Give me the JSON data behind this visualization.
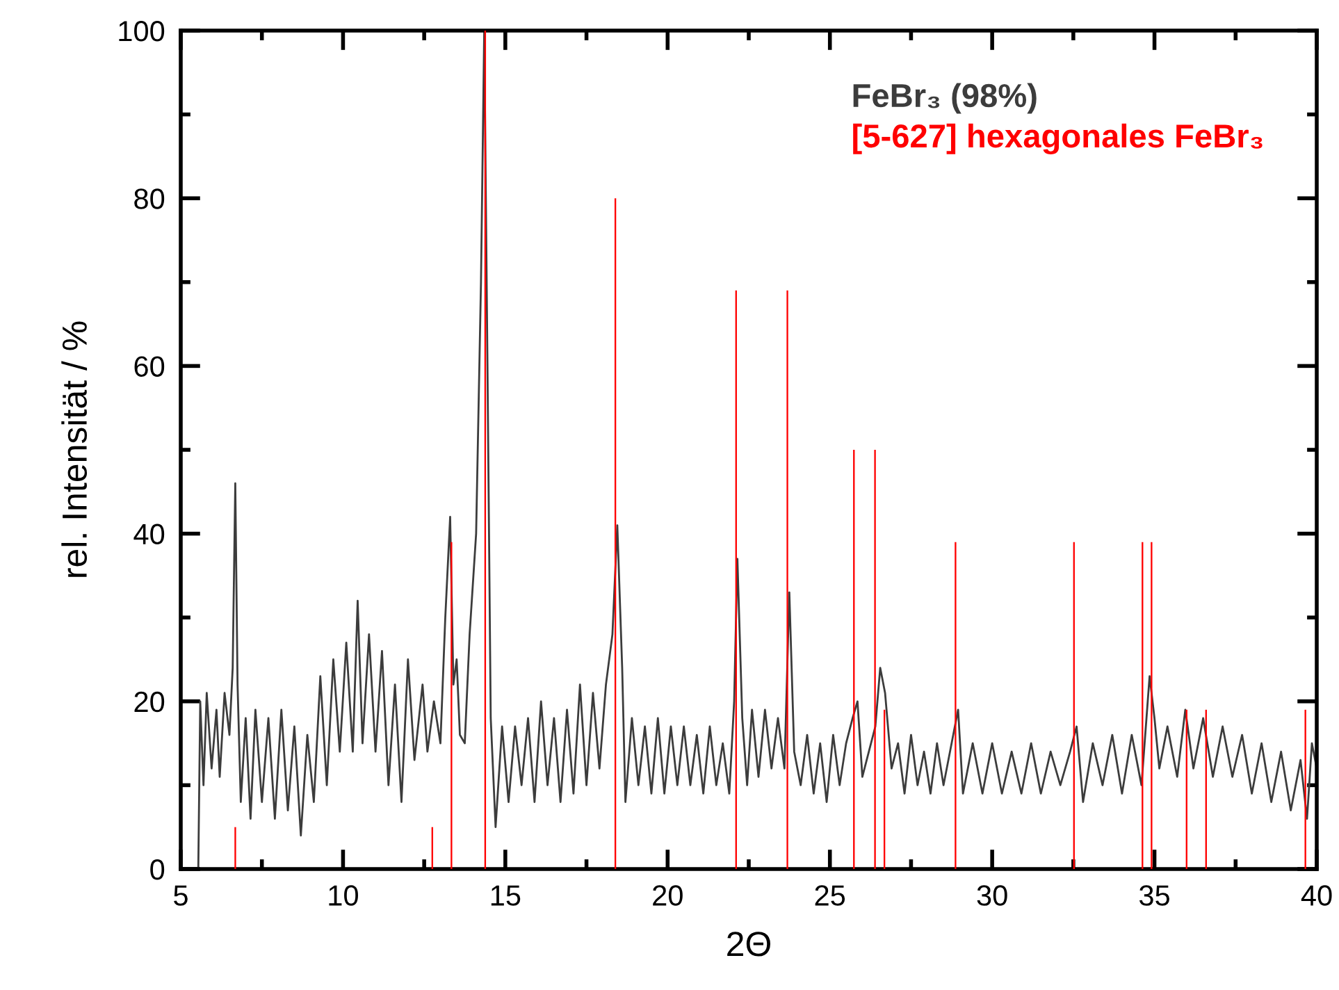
{
  "chart_data": {
    "type": "line",
    "xlabel": "2Θ",
    "ylabel": "rel. Intensität / %",
    "xlim": [
      5,
      40
    ],
    "ylim": [
      0,
      100
    ],
    "xticks": [
      5,
      {
        "value": 7.5,
        "label": null
      },
      10,
      {
        "value": 12.5,
        "label": null
      },
      15,
      {
        "value": 17.5,
        "label": null
      },
      20,
      {
        "value": 22.5,
        "label": null
      },
      25,
      {
        "value": 27.5,
        "label": null
      },
      30,
      {
        "value": 32.5,
        "label": null
      },
      35,
      {
        "value": 37.5,
        "label": null
      },
      40
    ],
    "yticks": [
      0,
      {
        "value": 10,
        "label": null
      },
      20,
      {
        "value": 30,
        "label": null
      },
      40,
      {
        "value": 50,
        "label": null
      },
      60,
      {
        "value": 70,
        "label": null
      },
      80,
      {
        "value": 90,
        "label": null
      },
      100
    ],
    "grid": false,
    "legend": "top right",
    "series": [
      {
        "name": "FeBr₃ (98%)",
        "color": "#3c3c3c",
        "x": [
          5.54,
          5.6,
          5.7,
          5.8,
          5.95,
          6.1,
          6.2,
          6.35,
          6.5,
          6.6,
          6.68,
          6.75,
          6.85,
          7.0,
          7.15,
          7.3,
          7.5,
          7.7,
          7.9,
          8.1,
          8.3,
          8.5,
          8.7,
          8.9,
          9.1,
          9.3,
          9.5,
          9.7,
          9.9,
          10.1,
          10.3,
          10.45,
          10.6,
          10.8,
          11.0,
          11.2,
          11.4,
          11.6,
          11.8,
          12.0,
          12.2,
          12.45,
          12.6,
          12.8,
          13.0,
          13.15,
          13.3,
          13.4,
          13.5,
          13.6,
          13.75,
          13.9,
          14.1,
          14.25,
          14.35,
          14.45,
          14.55,
          14.7,
          14.9,
          15.1,
          15.3,
          15.5,
          15.7,
          15.9,
          16.1,
          16.3,
          16.5,
          16.7,
          16.9,
          17.1,
          17.3,
          17.5,
          17.7,
          17.9,
          18.1,
          18.3,
          18.45,
          18.6,
          18.7,
          18.9,
          19.1,
          19.3,
          19.5,
          19.7,
          19.9,
          20.1,
          20.3,
          20.5,
          20.7,
          20.9,
          21.1,
          21.3,
          21.5,
          21.7,
          21.9,
          22.05,
          22.15,
          22.3,
          22.45,
          22.6,
          22.8,
          23.0,
          23.2,
          23.4,
          23.6,
          23.75,
          23.9,
          24.1,
          24.3,
          24.5,
          24.7,
          24.9,
          25.1,
          25.3,
          25.5,
          25.7,
          25.85,
          26.0,
          26.2,
          26.4,
          26.55,
          26.7,
          26.9,
          27.1,
          27.3,
          27.5,
          27.7,
          27.9,
          28.1,
          28.3,
          28.5,
          28.7,
          28.95,
          29.1,
          29.4,
          29.7,
          30.0,
          30.3,
          30.6,
          30.9,
          31.2,
          31.5,
          31.8,
          32.1,
          32.4,
          32.6,
          32.8,
          33.1,
          33.4,
          33.7,
          34.0,
          34.3,
          34.6,
          34.85,
          35.0,
          35.15,
          35.4,
          35.7,
          35.95,
          36.2,
          36.5,
          36.8,
          37.1,
          37.4,
          37.7,
          38.0,
          38.3,
          38.6,
          38.9,
          39.2,
          39.5,
          39.7,
          39.85,
          40
        ],
        "values": [
          0,
          20,
          10,
          21,
          12,
          19,
          11,
          21,
          16,
          24,
          46,
          22,
          8,
          18,
          6,
          19,
          8,
          18,
          6,
          19,
          7,
          17,
          4,
          16,
          8,
          23,
          10,
          25,
          14,
          27,
          14,
          32,
          15,
          28,
          14,
          26,
          10,
          22,
          8,
          25,
          13,
          22,
          14,
          20,
          15,
          30,
          42,
          22,
          25,
          16,
          15,
          28,
          40,
          70,
          100,
          60,
          18,
          5,
          17,
          8,
          17,
          10,
          18,
          8,
          20,
          10,
          18,
          8,
          19,
          9,
          22,
          10,
          21,
          12,
          22,
          28,
          41,
          24,
          8,
          18,
          10,
          17,
          9,
          18,
          9,
          17,
          10,
          17,
          10,
          16,
          9,
          17,
          10,
          15,
          9,
          20,
          37,
          18,
          10,
          19,
          11,
          19,
          12,
          18,
          12,
          33,
          14,
          10,
          16,
          9,
          15,
          8,
          16,
          10,
          15,
          18,
          20,
          11,
          14,
          17,
          24,
          21,
          12,
          15,
          9,
          16,
          10,
          14,
          9,
          15,
          10,
          14,
          19,
          9,
          15,
          9,
          15,
          9,
          14,
          9,
          15,
          9,
          14,
          10,
          14,
          17,
          8,
          15,
          10,
          16,
          9,
          16,
          10,
          23,
          18,
          12,
          17,
          11,
          19,
          12,
          18,
          11,
          17,
          11,
          16,
          9,
          15,
          8,
          14,
          7,
          13,
          6,
          15,
          12
        ]
      },
      {
        "name": "[5-627] hexagonales FeBr₃",
        "color": "#ff0000",
        "type": "bar",
        "x": [
          6.68,
          12.75,
          13.34,
          14.38,
          18.39,
          22.11,
          23.69,
          25.74,
          26.39,
          26.68,
          28.87,
          32.52,
          34.63,
          34.91,
          35.99,
          36.59,
          39.65
        ],
        "values": [
          5,
          5,
          39,
          100,
          80,
          69,
          69,
          50,
          50,
          19,
          39,
          39,
          39,
          39,
          19,
          19,
          19
        ]
      }
    ]
  }
}
